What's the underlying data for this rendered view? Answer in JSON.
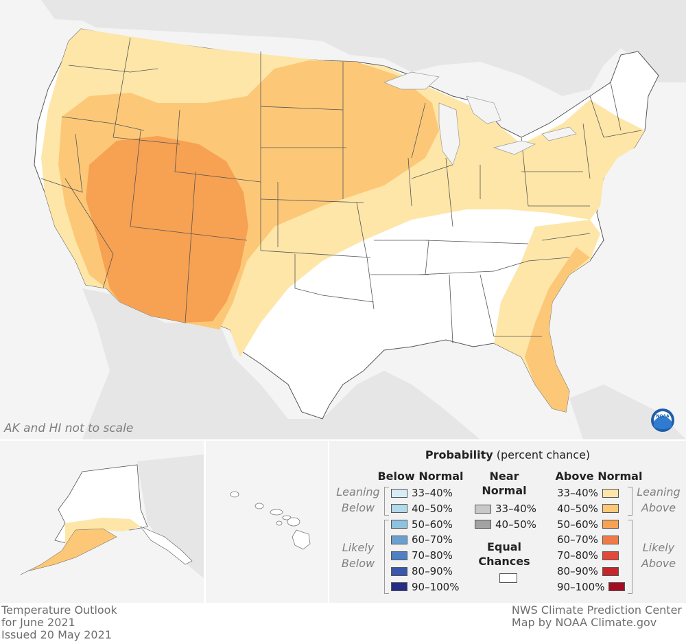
{
  "map": {
    "scale_note": "AK and HI not to scale",
    "logo_text": "NOAA"
  },
  "legend": {
    "title_bold": "Probability",
    "title_rest": "(percent chance)",
    "below": {
      "header": "Below Normal",
      "items": [
        {
          "label": "33–40%",
          "color": "#d8ecf5"
        },
        {
          "label": "40–50%",
          "color": "#b3d9ea"
        },
        {
          "label": "50–60%",
          "color": "#8ec3df"
        },
        {
          "label": "60–70%",
          "color": "#6a9fd0"
        },
        {
          "label": "70–80%",
          "color": "#4f7fc4"
        },
        {
          "label": "80–90%",
          "color": "#3a56ad"
        },
        {
          "label": "90–100%",
          "color": "#262b86"
        }
      ],
      "leaning_1": "Leaning",
      "leaning_2": "Below",
      "likely_1": "Likely",
      "likely_2": "Below"
    },
    "near": {
      "header_1": "Near",
      "header_2": "Normal",
      "items": [
        {
          "label": "33–40%",
          "color": "#c8c8c8"
        },
        {
          "label": "40–50%",
          "color": "#a2a2a2"
        }
      ],
      "equal_1": "Equal",
      "equal_2": "Chances",
      "equal_color": "#ffffff"
    },
    "above": {
      "header": "Above Normal",
      "items": [
        {
          "label": "33–40%",
          "color": "#fde6a8"
        },
        {
          "label": "40–50%",
          "color": "#fcc878"
        },
        {
          "label": "50–60%",
          "color": "#f7a153"
        },
        {
          "label": "60–70%",
          "color": "#ef7a45"
        },
        {
          "label": "70–80%",
          "color": "#e2493a"
        },
        {
          "label": "80–90%",
          "color": "#c8252b"
        },
        {
          "label": "90–100%",
          "color": "#a20d24"
        }
      ],
      "leaning_1": "Leaning",
      "leaning_2": "Above",
      "likely_1": "Likely",
      "likely_2": "Above"
    }
  },
  "footer": {
    "left_1": "Temperature Outlook",
    "left_2": "for June 2021",
    "left_3": "Issued 20 May 2021",
    "right_1": "NWS Climate Prediction Center",
    "right_2": "Map by NOAA Climate.gov"
  },
  "colors": {
    "background_land": "#e9e9e9",
    "water": "#f4f4f4",
    "equal_chances": "#ffffff",
    "above_33_40": "#fde6a8",
    "above_40_50": "#fcc878",
    "above_50_60": "#f7a153"
  }
}
